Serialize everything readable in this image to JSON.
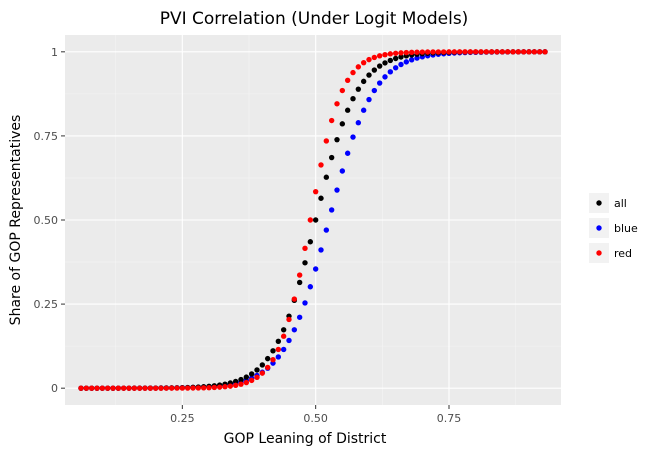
{
  "chart_data": {
    "type": "scatter",
    "title": "PVI Correlation (Under Logit Models)",
    "xlabel": "GOP Leaning of District",
    "ylabel": "Share of GOP Representatives",
    "xlim": [
      0.03,
      0.96
    ],
    "ylim": [
      -0.05,
      1.05
    ],
    "x_ticks": [
      0.25,
      0.5,
      0.75
    ],
    "x_tick_labels": [
      "0.25",
      "0.50",
      "0.75"
    ],
    "y_ticks": [
      0,
      0.25,
      0.5,
      0.75,
      1
    ],
    "y_tick_labels": [
      "0",
      "0.25",
      "0.50",
      "0.75",
      "1"
    ],
    "grid": true,
    "legend_position": "right",
    "series": [
      {
        "name": "all",
        "color": "#000000",
        "x_start": 0.06,
        "x_end": 0.93,
        "n_points": 88,
        "midpoint": 0.5,
        "steepness": 26
      },
      {
        "name": "blue",
        "color": "#0000ff",
        "x_start": 0.06,
        "x_end": 0.93,
        "n_points": 88,
        "midpoint": 0.525,
        "steepness": 24
      },
      {
        "name": "red",
        "color": "#ff0000",
        "x_start": 0.06,
        "x_end": 0.93,
        "n_points": 88,
        "midpoint": 0.49,
        "steepness": 34
      }
    ]
  }
}
